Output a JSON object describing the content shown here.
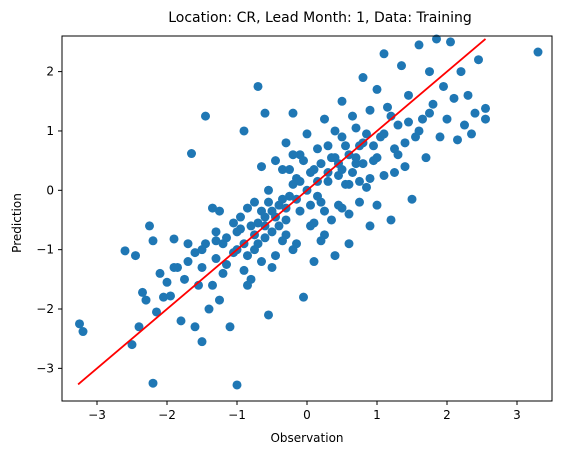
{
  "chart_data": {
    "type": "scatter",
    "title": "Location: CR, Lead Month: 1, Data: Training",
    "xlabel": "Observation",
    "ylabel": "Prediction",
    "xlim": [
      -3.5,
      3.5
    ],
    "ylim": [
      -3.55,
      2.6
    ],
    "xticks": [
      -3,
      -2,
      -1,
      0,
      1,
      2,
      3
    ],
    "yticks": [
      -3,
      -2,
      -1,
      0,
      1,
      2
    ],
    "tick_labels_x": [
      "−3",
      "−2",
      "−1",
      "0",
      "1",
      "2",
      "3"
    ],
    "tick_labels_y": [
      "−3",
      "−2",
      "−1",
      "0",
      "1",
      "2"
    ],
    "grid": false,
    "series": [
      {
        "kind": "scatter",
        "color": "#1f77b4",
        "points": [
          [
            -3.25,
            -2.25
          ],
          [
            -3.2,
            -2.38
          ],
          [
            -2.6,
            -1.02
          ],
          [
            -2.5,
            -2.6
          ],
          [
            -2.45,
            -1.1
          ],
          [
            -2.4,
            -2.3
          ],
          [
            -2.35,
            -1.72
          ],
          [
            -2.3,
            -1.85
          ],
          [
            -2.25,
            -0.6
          ],
          [
            -2.2,
            -3.25
          ],
          [
            -2.2,
            -0.85
          ],
          [
            -2.15,
            -2.05
          ],
          [
            -2.1,
            -1.4
          ],
          [
            -2.05,
            -1.8
          ],
          [
            -1.95,
            -1.78
          ],
          [
            -1.9,
            -0.82
          ],
          [
            -1.85,
            -1.3
          ],
          [
            -1.8,
            -2.2
          ],
          [
            -1.75,
            -1.5
          ],
          [
            -1.7,
            -1.2
          ],
          [
            -1.65,
            0.62
          ],
          [
            -1.6,
            -2.3
          ],
          [
            -1.6,
            -1.05
          ],
          [
            -1.55,
            -1.6
          ],
          [
            -1.5,
            -2.55
          ],
          [
            -1.5,
            -1.3
          ],
          [
            -1.45,
            -0.9
          ],
          [
            -1.45,
            1.25
          ],
          [
            -1.4,
            -2.0
          ],
          [
            -1.35,
            -1.6
          ],
          [
            -1.3,
            -0.7
          ],
          [
            -1.3,
            -1.15
          ],
          [
            -1.25,
            -0.35
          ],
          [
            -1.2,
            -1.4
          ],
          [
            -1.15,
            -0.8
          ],
          [
            -1.1,
            -2.3
          ],
          [
            -1.05,
            -0.55
          ],
          [
            -1.0,
            -3.28
          ],
          [
            -1.0,
            -1.0
          ],
          [
            -0.95,
            -0.65
          ],
          [
            -0.9,
            1.0
          ],
          [
            -0.9,
            -1.35
          ],
          [
            -0.85,
            -0.3
          ],
          [
            -0.8,
            -1.5
          ],
          [
            -0.75,
            -0.2
          ],
          [
            -0.7,
            1.75
          ],
          [
            -0.7,
            -0.9
          ],
          [
            -0.65,
            -1.2
          ],
          [
            -0.6,
            1.3
          ],
          [
            -0.6,
            -0.45
          ],
          [
            -0.55,
            0.0
          ],
          [
            -0.55,
            -2.1
          ],
          [
            -0.5,
            -0.7
          ],
          [
            -0.45,
            0.5
          ],
          [
            -0.45,
            -1.1
          ],
          [
            -0.4,
            -0.25
          ],
          [
            -0.35,
            0.35
          ],
          [
            -0.35,
            -0.85
          ],
          [
            -0.3,
            0.8
          ],
          [
            -0.3,
            -0.5
          ],
          [
            -0.25,
            -0.1
          ],
          [
            -0.2,
            1.3
          ],
          [
            -0.2,
            -1.0
          ],
          [
            -0.15,
            0.2
          ],
          [
            -0.1,
            -0.35
          ],
          [
            -0.1,
            0.6
          ],
          [
            -0.05,
            -1.8
          ],
          [
            0.0,
            0.0
          ],
          [
            0.0,
            0.95
          ],
          [
            0.05,
            -0.6
          ],
          [
            0.1,
            0.35
          ],
          [
            0.1,
            -1.2
          ],
          [
            0.15,
            0.7
          ],
          [
            0.2,
            -0.2
          ],
          [
            0.25,
            1.2
          ],
          [
            0.25,
            -0.75
          ],
          [
            0.3,
            0.15
          ],
          [
            0.35,
            0.55
          ],
          [
            0.35,
            -0.5
          ],
          [
            0.4,
            1.0
          ],
          [
            0.4,
            -1.1
          ],
          [
            0.45,
            0.25
          ],
          [
            0.5,
            1.5
          ],
          [
            0.5,
            -0.3
          ],
          [
            0.55,
            0.75
          ],
          [
            0.6,
            0.1
          ],
          [
            0.6,
            -0.9
          ],
          [
            0.65,
            1.25
          ],
          [
            0.7,
            0.45
          ],
          [
            0.75,
            -0.2
          ],
          [
            0.8,
            1.9
          ],
          [
            0.8,
            0.8
          ],
          [
            0.85,
            0.05
          ],
          [
            0.9,
            1.35
          ],
          [
            0.9,
            -0.6
          ],
          [
            0.95,
            0.5
          ],
          [
            1.0,
            1.7
          ],
          [
            1.0,
            -0.25
          ],
          [
            1.05,
            0.9
          ],
          [
            1.1,
            2.3
          ],
          [
            1.1,
            0.25
          ],
          [
            1.15,
            1.4
          ],
          [
            1.2,
            -0.5
          ],
          [
            1.25,
            0.7
          ],
          [
            1.3,
            1.1
          ],
          [
            1.35,
            2.1
          ],
          [
            1.4,
            0.4
          ],
          [
            1.45,
            1.6
          ],
          [
            1.5,
            -0.15
          ],
          [
            1.55,
            0.9
          ],
          [
            1.6,
            2.45
          ],
          [
            1.65,
            1.2
          ],
          [
            1.7,
            0.55
          ],
          [
            1.75,
            2.0
          ],
          [
            1.8,
            1.45
          ],
          [
            1.85,
            2.55
          ],
          [
            1.9,
            0.9
          ],
          [
            1.95,
            1.75
          ],
          [
            2.0,
            1.2
          ],
          [
            2.05,
            2.5
          ],
          [
            2.1,
            1.55
          ],
          [
            2.15,
            0.85
          ],
          [
            2.2,
            2.0
          ],
          [
            2.25,
            1.1
          ],
          [
            2.3,
            1.6
          ],
          [
            2.35,
            0.95
          ],
          [
            2.4,
            1.3
          ],
          [
            2.45,
            2.2
          ],
          [
            2.55,
            1.38
          ],
          [
            2.55,
            1.2
          ],
          [
            3.3,
            2.33
          ],
          [
            -0.75,
            -0.75
          ],
          [
            -0.6,
            -0.6
          ],
          [
            -0.45,
            -0.45
          ],
          [
            -0.3,
            -0.3
          ],
          [
            -0.15,
            -0.15
          ],
          [
            0.15,
            0.15
          ],
          [
            0.3,
            0.3
          ],
          [
            0.45,
            0.45
          ],
          [
            0.6,
            0.6
          ],
          [
            0.75,
            0.75
          ],
          [
            -1.05,
            -1.05
          ],
          [
            -0.9,
            -0.9
          ],
          [
            -0.7,
            -0.55
          ],
          [
            -0.5,
            -0.35
          ],
          [
            -0.2,
            0.1
          ],
          [
            0.05,
            0.3
          ],
          [
            0.2,
            0.45
          ],
          [
            0.5,
            0.35
          ],
          [
            0.7,
            0.55
          ],
          [
            0.85,
            0.95
          ],
          [
            -0.8,
            -0.6
          ],
          [
            -0.6,
            -0.8
          ],
          [
            -0.35,
            -0.15
          ],
          [
            -0.1,
            0.15
          ],
          [
            0.15,
            -0.1
          ],
          [
            0.4,
            0.55
          ],
          [
            0.65,
            0.3
          ],
          [
            0.95,
            0.75
          ],
          [
            1.1,
            0.95
          ],
          [
            -1.2,
            -0.9
          ],
          [
            -1.0,
            -0.7
          ],
          [
            -0.85,
            -1.1
          ],
          [
            -0.65,
            -0.35
          ],
          [
            -0.4,
            -0.6
          ],
          [
            -0.25,
            0.35
          ],
          [
            0.05,
            -0.25
          ],
          [
            0.3,
            0.75
          ],
          [
            0.55,
            0.1
          ],
          [
            0.8,
            0.45
          ],
          [
            -1.5,
            -1.0
          ],
          [
            -1.3,
            -0.85
          ],
          [
            -1.15,
            -1.25
          ],
          [
            -0.95,
            -0.45
          ],
          [
            -0.75,
            -1.0
          ],
          [
            -0.55,
            -0.2
          ],
          [
            -0.3,
            -0.75
          ],
          [
            -0.05,
            0.5
          ],
          [
            0.25,
            -0.35
          ],
          [
            0.5,
            0.9
          ],
          [
            0.75,
            0.15
          ],
          [
            1.0,
            0.55
          ],
          [
            1.2,
            1.25
          ],
          [
            1.4,
            0.8
          ],
          [
            1.6,
            1.0
          ],
          [
            -0.65,
            0.4
          ],
          [
            -0.2,
            0.6
          ],
          [
            0.1,
            -0.55
          ],
          [
            0.45,
            -0.25
          ],
          [
            0.7,
            1.05
          ],
          [
            1.25,
            0.3
          ],
          [
            1.45,
            1.15
          ],
          [
            1.75,
            1.3
          ],
          [
            -1.35,
            -0.3
          ],
          [
            -1.7,
            -0.9
          ],
          [
            -1.9,
            -1.3
          ],
          [
            -2.0,
            -1.55
          ],
          [
            -1.25,
            -1.85
          ],
          [
            -0.85,
            -1.6
          ],
          [
            -0.5,
            -1.3
          ],
          [
            -0.15,
            -0.9
          ],
          [
            0.2,
            -0.85
          ],
          [
            0.6,
            -0.4
          ],
          [
            0.9,
            0.2
          ],
          [
            1.3,
            0.6
          ]
        ]
      },
      {
        "kind": "line",
        "color": "#ff0000",
        "points": [
          [
            -3.27,
            -3.27
          ],
          [
            2.55,
            2.55
          ]
        ]
      }
    ]
  }
}
